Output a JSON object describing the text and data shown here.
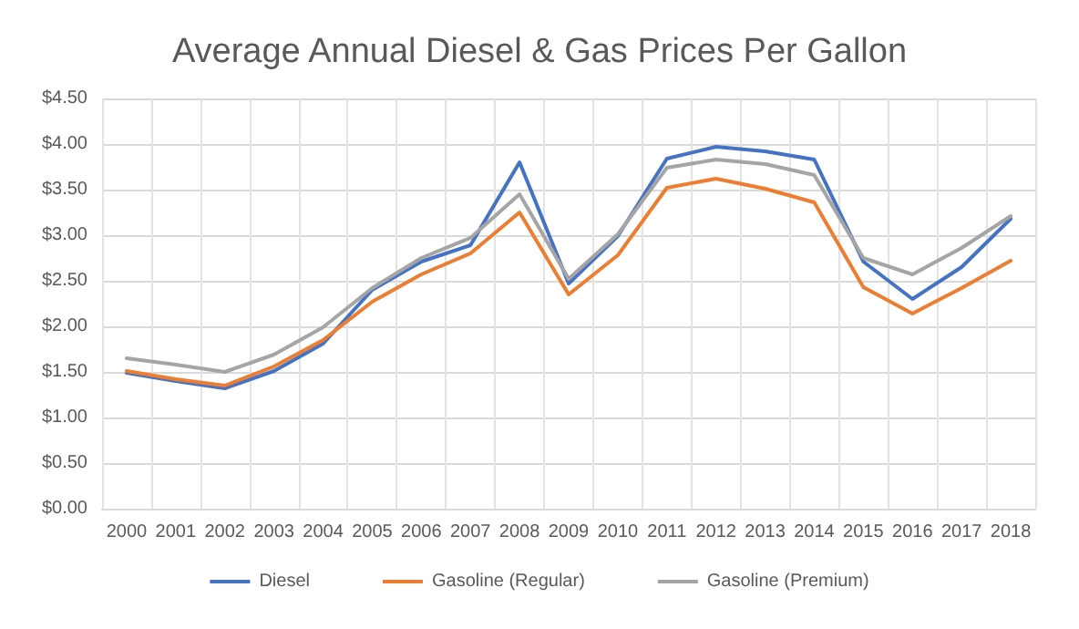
{
  "chart_data": {
    "type": "line",
    "title": "Average Annual Diesel & Gas Prices Per Gallon",
    "categories": [
      "2000",
      "2001",
      "2002",
      "2003",
      "2004",
      "2005",
      "2006",
      "2007",
      "2008",
      "2009",
      "2010",
      "2011",
      "2012",
      "2013",
      "2014",
      "2015",
      "2016",
      "2017",
      "2018"
    ],
    "series": [
      {
        "name": "Diesel",
        "color": "#4472c4",
        "values": [
          1.49,
          1.4,
          1.32,
          1.51,
          1.81,
          2.4,
          2.71,
          2.89,
          3.8,
          2.47,
          2.99,
          3.84,
          3.97,
          3.92,
          3.83,
          2.71,
          2.3,
          2.65,
          3.18
        ]
      },
      {
        "name": "Gasoline (Regular)",
        "color": "#ed7d31",
        "values": [
          1.51,
          1.42,
          1.35,
          1.56,
          1.85,
          2.27,
          2.57,
          2.8,
          3.25,
          2.35,
          2.78,
          3.52,
          3.62,
          3.51,
          3.36,
          2.43,
          2.14,
          2.42,
          2.72
        ]
      },
      {
        "name": "Gasoline (Premium)",
        "color": "#a5a5a5",
        "values": [
          1.65,
          1.58,
          1.5,
          1.69,
          1.99,
          2.42,
          2.75,
          2.97,
          3.45,
          2.52,
          3.01,
          3.74,
          3.83,
          3.78,
          3.66,
          2.75,
          2.57,
          2.86,
          3.21
        ]
      }
    ],
    "ylim": [
      0,
      4.5
    ],
    "yticks": [
      {
        "value": 0,
        "label": "$0.00"
      },
      {
        "value": 0.5,
        "label": "$0.50"
      },
      {
        "value": 1,
        "label": "$1.00"
      },
      {
        "value": 1.5,
        "label": "$1.50"
      },
      {
        "value": 2,
        "label": "$2.00"
      },
      {
        "value": 2.5,
        "label": "$2.50"
      },
      {
        "value": 3,
        "label": "$3.00"
      },
      {
        "value": 3.5,
        "label": "$3.50"
      },
      {
        "value": 4,
        "label": "$4.00"
      },
      {
        "value": 4.5,
        "label": "$4.50"
      }
    ],
    "grid": true,
    "legend": "bottom",
    "marker": "none",
    "line_style": "solid"
  }
}
